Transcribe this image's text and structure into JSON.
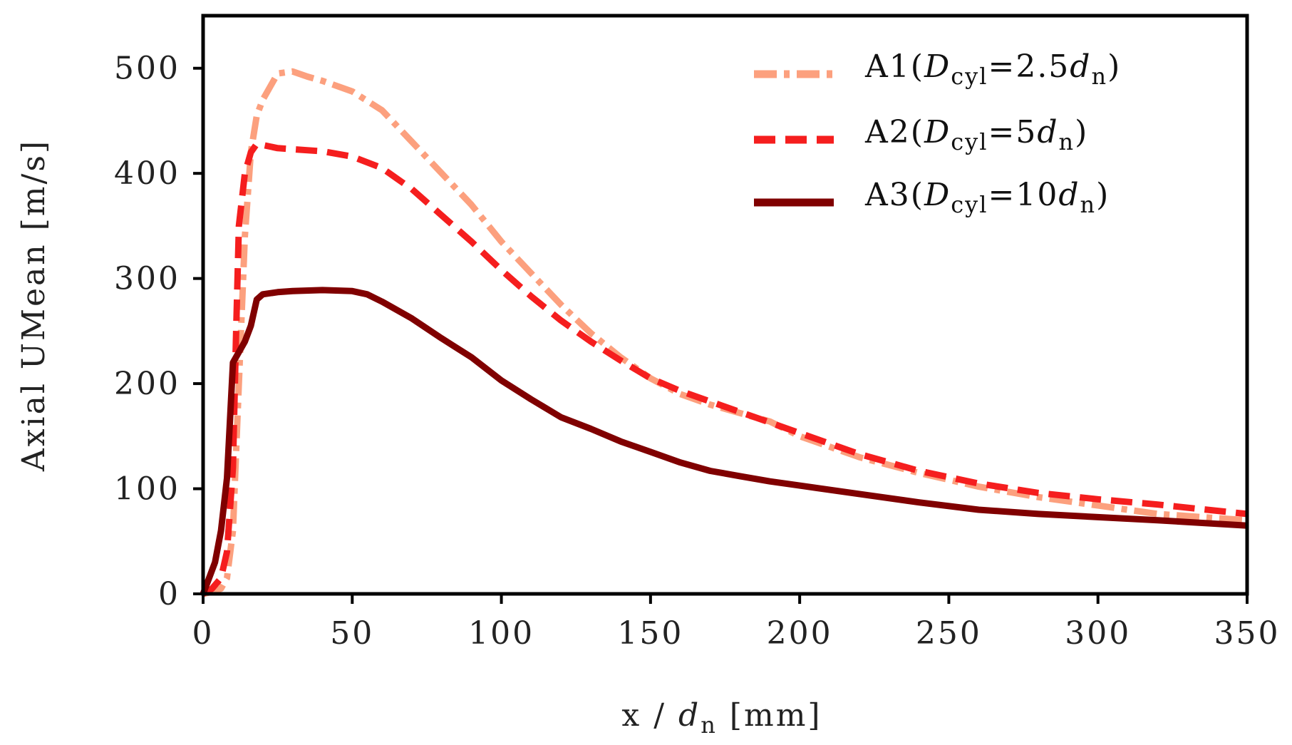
{
  "chart_data": {
    "type": "line",
    "title": "",
    "xlabel_parts": [
      "x / ",
      "d",
      "n",
      " [mm]"
    ],
    "ylabel": "Axial UMean [m/s]",
    "xlim": [
      0,
      350
    ],
    "ylim": [
      0,
      550
    ],
    "xticks": [
      0,
      50,
      100,
      150,
      200,
      250,
      300,
      350
    ],
    "yticks": [
      0,
      100,
      200,
      300,
      400,
      500
    ],
    "grid": false,
    "legend_position": "top-right",
    "series": [
      {
        "name": "A1",
        "legend_prefix": "A1(",
        "legend_D": "D",
        "legend_sub1": "cyl",
        "legend_mid": "=2.5",
        "legend_d": "d",
        "legend_sub2": "n",
        "legend_suffix": ")",
        "color": "#FCA07E",
        "style": "dashdot",
        "x": [
          0,
          3,
          6,
          8,
          10,
          12,
          14,
          16,
          18,
          20,
          25,
          30,
          35,
          40,
          50,
          60,
          70,
          80,
          90,
          100,
          110,
          120,
          130,
          140,
          150,
          160,
          170,
          180,
          190,
          200,
          220,
          240,
          260,
          280,
          300,
          320,
          350
        ],
        "y": [
          0,
          2,
          5,
          15,
          60,
          200,
          340,
          420,
          455,
          470,
          495,
          497,
          492,
          488,
          478,
          460,
          430,
          400,
          370,
          335,
          305,
          275,
          248,
          225,
          205,
          190,
          180,
          172,
          164,
          150,
          130,
          115,
          102,
          92,
          84,
          76,
          70
        ]
      },
      {
        "name": "A2",
        "legend_prefix": "A2(",
        "legend_D": "D",
        "legend_sub1": "cyl",
        "legend_mid": "=5",
        "legend_d": "d",
        "legend_sub2": "n",
        "legend_suffix": ")",
        "color": "#F51E1E",
        "style": "dashed",
        "x": [
          0,
          3,
          6,
          8,
          10,
          11,
          12,
          14,
          16,
          18,
          20,
          25,
          30,
          40,
          50,
          60,
          70,
          80,
          90,
          100,
          110,
          120,
          130,
          140,
          150,
          160,
          170,
          180,
          190,
          200,
          220,
          240,
          260,
          280,
          300,
          320,
          350
        ],
        "y": [
          0,
          5,
          15,
          40,
          120,
          240,
          350,
          400,
          420,
          428,
          427,
          424,
          423,
          421,
          416,
          405,
          385,
          360,
          335,
          308,
          283,
          260,
          240,
          222,
          205,
          193,
          183,
          173,
          163,
          153,
          133,
          117,
          105,
          96,
          90,
          85,
          76
        ]
      },
      {
        "name": "A3",
        "legend_prefix": "A3(",
        "legend_D": "D",
        "legend_sub1": "cyl",
        "legend_mid": "=10",
        "legend_d": "d",
        "legend_sub2": "n",
        "legend_suffix": ")",
        "color": "#800000",
        "style": "solid",
        "x": [
          0,
          2,
          4,
          6,
          8,
          10,
          12,
          14,
          16,
          18,
          20,
          25,
          30,
          40,
          50,
          55,
          60,
          70,
          80,
          90,
          100,
          110,
          120,
          130,
          140,
          150,
          160,
          170,
          180,
          190,
          200,
          220,
          240,
          260,
          280,
          300,
          320,
          350
        ],
        "y": [
          0,
          15,
          30,
          60,
          110,
          220,
          230,
          240,
          255,
          280,
          285,
          287,
          288,
          289,
          288,
          285,
          278,
          262,
          243,
          225,
          203,
          185,
          168,
          157,
          145,
          135,
          125,
          117,
          112,
          107,
          103,
          95,
          87,
          80,
          76,
          73,
          70,
          65
        ]
      }
    ]
  }
}
